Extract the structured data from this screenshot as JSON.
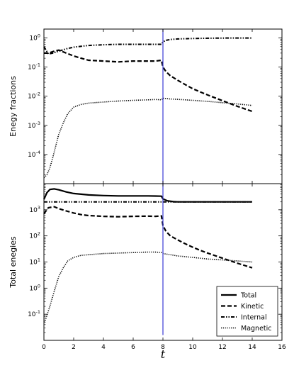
{
  "chart_data": [
    {
      "type": "line",
      "panel": "top",
      "title": "",
      "xlabel": "",
      "ylabel": "Enegy fractions",
      "xlim": [
        0,
        16
      ],
      "ylim": [
        1e-05,
        2
      ],
      "yscale": "log",
      "y_ticks": [
        {
          "base": "10",
          "exp": "0",
          "value": 1
        },
        {
          "base": "10",
          "exp": "-1",
          "value": 0.1
        },
        {
          "base": "10",
          "exp": "-2",
          "value": 0.01
        },
        {
          "base": "10",
          "exp": "-3",
          "value": 0.001
        },
        {
          "base": "10",
          "exp": "-4",
          "value": 0.0001
        }
      ],
      "vline_x": 8,
      "vline_color": "#3a3ad6",
      "series": [
        {
          "style": "dashed",
          "x": [
            0,
            0.3,
            0.7,
            1,
            1.5,
            2,
            2.5,
            3,
            4,
            5,
            6,
            7,
            7.5,
            7.9,
            8,
            8.2,
            8.5,
            9,
            9.5,
            10,
            10.5,
            11,
            12,
            13,
            14
          ],
          "y": [
            0.3,
            0.3,
            0.35,
            0.38,
            0.3,
            0.24,
            0.2,
            0.17,
            0.16,
            0.15,
            0.16,
            0.16,
            0.16,
            0.17,
            0.1,
            0.07,
            0.05,
            0.035,
            0.025,
            0.018,
            0.014,
            0.011,
            0.007,
            0.0045,
            0.003
          ]
        },
        {
          "style": "dashdot",
          "x": [
            0,
            0.3,
            0.6,
            1,
            1.5,
            2,
            3,
            4,
            5,
            6,
            7,
            7.5,
            7.9,
            8,
            8.2,
            8.5,
            9,
            10,
            11,
            12,
            13,
            14
          ],
          "y": [
            0.5,
            0.28,
            0.3,
            0.35,
            0.42,
            0.48,
            0.55,
            0.58,
            0.6,
            0.6,
            0.6,
            0.6,
            0.6,
            0.72,
            0.82,
            0.88,
            0.92,
            0.95,
            0.97,
            0.98,
            0.99,
            0.99
          ]
        },
        {
          "style": "dotted",
          "x": [
            0,
            0.2,
            0.4,
            0.6,
            0.8,
            1,
            1.3,
            1.6,
            2,
            2.5,
            3,
            4,
            5,
            6,
            7,
            7.5,
            7.9,
            8,
            8.5,
            9,
            10,
            11,
            12,
            13,
            14
          ],
          "y": [
            1.6e-05,
            2e-05,
            3.5e-05,
            8e-05,
            0.0002,
            0.0005,
            0.0012,
            0.0025,
            0.0042,
            0.0052,
            0.0058,
            0.0063,
            0.0068,
            0.0072,
            0.0075,
            0.0077,
            0.0075,
            0.0085,
            0.008,
            0.0078,
            0.0072,
            0.0066,
            0.006,
            0.0054,
            0.0048
          ]
        }
      ]
    },
    {
      "type": "line",
      "panel": "bottom",
      "title": "",
      "xlabel": "t",
      "ylabel": "Total enegies",
      "xlim": [
        0,
        16
      ],
      "ylim": [
        0.01,
        10000
      ],
      "yscale": "log",
      "x_ticks": [
        "0",
        "2",
        "4",
        "6",
        "8",
        "10",
        "12",
        "14",
        "16"
      ],
      "y_ticks": [
        {
          "base": "10",
          "exp": "3",
          "value": 1000
        },
        {
          "base": "10",
          "exp": "2",
          "value": 100
        },
        {
          "base": "10",
          "exp": "1",
          "value": 10
        },
        {
          "base": "10",
          "exp": "0",
          "value": 1
        },
        {
          "base": "10",
          "exp": "-1",
          "value": 0.1
        }
      ],
      "vline_x": 8,
      "vline_ylim": [
        0.016,
        10000
      ],
      "vline_color": "#3a3ad6",
      "legend": {
        "position": "bottom-right",
        "entries": [
          "Total",
          "Kinetic",
          "Internal",
          "Magnetic"
        ]
      },
      "series": [
        {
          "name": "Total",
          "style": "solid",
          "x": [
            0,
            0.2,
            0.4,
            0.7,
            1,
            1.5,
            2,
            3,
            4,
            5,
            6,
            7,
            7.5,
            7.9,
            8,
            8.3,
            8.7,
            9,
            10,
            12,
            14
          ],
          "y": [
            2500,
            4500,
            6000,
            6300,
            5800,
            4800,
            4200,
            3700,
            3500,
            3400,
            3400,
            3400,
            3350,
            3300,
            2600,
            2200,
            2050,
            2000,
            2000,
            2000,
            2000
          ]
        },
        {
          "name": "Kinetic",
          "style": "dashed",
          "x": [
            0,
            0.3,
            0.7,
            1,
            1.5,
            2,
            2.5,
            3,
            4,
            5,
            6,
            7,
            7.5,
            7.9,
            8,
            8.2,
            8.5,
            9,
            9.5,
            10,
            10.5,
            11,
            12,
            13,
            14
          ],
          "y": [
            700,
            1200,
            1300,
            1100,
            900,
            750,
            650,
            600,
            560,
            540,
            560,
            570,
            560,
            580,
            250,
            150,
            100,
            70,
            50,
            37,
            28,
            22,
            14,
            9,
            6
          ]
        },
        {
          "name": "Internal",
          "style": "dashdot",
          "x": [
            0,
            14
          ],
          "y": [
            2000,
            2000
          ]
        },
        {
          "name": "Magnetic",
          "style": "dotted",
          "x": [
            0,
            0.1,
            0.2,
            0.4,
            0.6,
            0.8,
            1,
            1.3,
            1.6,
            2,
            2.5,
            3,
            4,
            5,
            6,
            7,
            7.5,
            7.9,
            8,
            8.5,
            9,
            10,
            11,
            12,
            13,
            14
          ],
          "y": [
            0.05,
            0.06,
            0.09,
            0.2,
            0.5,
            1.2,
            2.8,
            6,
            11,
            15,
            18,
            19,
            21,
            22,
            23,
            24,
            24,
            23,
            21,
            19,
            17,
            15,
            13,
            12,
            11,
            10
          ]
        }
      ]
    }
  ]
}
